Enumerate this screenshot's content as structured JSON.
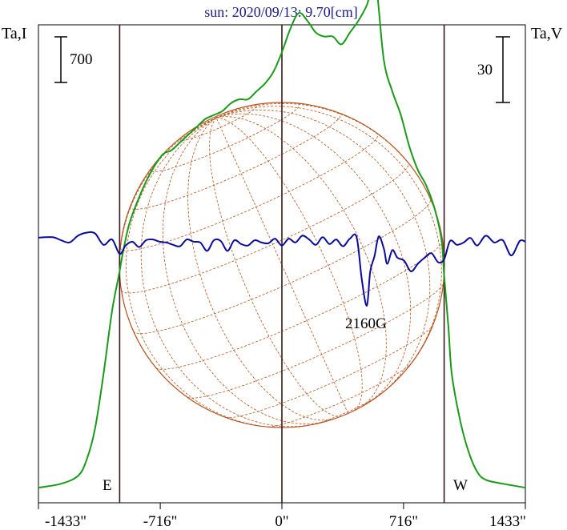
{
  "chart_data": {
    "type": "line",
    "title": "sun: 2020/09/13: 9.70[cm]",
    "left_axis_label": "Ta,I",
    "right_axis_label": "Ta,V",
    "left_scale_label": "700",
    "right_scale_label": "30",
    "x_ticks": [
      {
        "value": -1433,
        "label": "-1433\""
      },
      {
        "value": -716,
        "label": "-716\""
      },
      {
        "value": 0,
        "label": "0\""
      },
      {
        "value": 716,
        "label": "716\""
      },
      {
        "value": 1433,
        "label": "1433\""
      }
    ],
    "xlim": [
      -1433,
      1433
    ],
    "limb_markers": [
      {
        "value": -955,
        "label": "E"
      },
      {
        "value": 0,
        "label": ""
      },
      {
        "value": 955,
        "label": "W"
      }
    ],
    "annotations": [
      {
        "x": 520,
        "text": "2160G"
      }
    ],
    "colors": {
      "intensity": "#1a9a1a",
      "polarization": "#0a0a9a",
      "disk": "#b5531c",
      "limb_lines": "#3a1a1a",
      "title": "#1a1a8c"
    },
    "series": [
      {
        "key": "I",
        "x": [
          -1433,
          -1300,
          -1200,
          -1150,
          -1100,
          -1050,
          -1000,
          -960,
          -940,
          -900,
          -850,
          -800,
          -750,
          -700,
          -650,
          -600,
          -550,
          -500,
          -450,
          -400,
          -350,
          -300,
          -250,
          -200,
          -150,
          -100,
          -50,
          0,
          50,
          100,
          150,
          200,
          250,
          300,
          350,
          400,
          450,
          500,
          550,
          600,
          650,
          700,
          750,
          800,
          850,
          900,
          940,
          955,
          980,
          1000,
          1050,
          1100,
          1150,
          1200,
          1300,
          1433
        ],
        "y": [
          0.01,
          0.02,
          0.04,
          0.08,
          0.16,
          0.3,
          0.46,
          0.55,
          0.6,
          0.68,
          0.74,
          0.79,
          0.83,
          0.86,
          0.87,
          0.89,
          0.91,
          0.93,
          0.95,
          0.96,
          0.97,
          0.99,
          1.0,
          1.0,
          1.02,
          1.04,
          1.07,
          1.12,
          1.18,
          1.22,
          1.2,
          1.17,
          1.16,
          1.16,
          1.14,
          1.17,
          1.2,
          1.24,
          1.3,
          1.1,
          1.02,
          0.96,
          0.88,
          0.82,
          0.78,
          0.72,
          0.64,
          0.55,
          0.42,
          0.3,
          0.18,
          0.1,
          0.05,
          0.03,
          0.02,
          0.01
        ]
      },
      {
        "key": "V",
        "x": [
          -1433,
          -1350,
          -1300,
          -1250,
          -1200,
          -1150,
          -1100,
          -1050,
          -1000,
          -955,
          -920,
          -880,
          -840,
          -800,
          -760,
          -720,
          -680,
          -640,
          -600,
          -560,
          -520,
          -480,
          -440,
          -400,
          -360,
          -320,
          -280,
          -240,
          -200,
          -160,
          -120,
          -80,
          -40,
          0,
          40,
          80,
          120,
          160,
          200,
          240,
          280,
          320,
          360,
          400,
          440,
          470,
          500,
          520,
          545,
          570,
          600,
          620,
          650,
          680,
          720,
          760,
          800,
          840,
          880,
          920,
          955,
          990,
          1030,
          1070,
          1110,
          1150,
          1200,
          1250,
          1300,
          1350,
          1400,
          1433
        ],
        "y": [
          0.22,
          0.25,
          0.05,
          -0.1,
          0.35,
          0.55,
          0.5,
          -0.25,
          0.1,
          -0.85,
          -0.3,
          -0.05,
          -0.4,
          0.05,
          0.1,
          -0.05,
          -0.1,
          -0.25,
          -0.35,
          0.1,
          -0.05,
          -0.1,
          -0.65,
          0.05,
          0.0,
          -0.65,
          0.05,
          -0.2,
          -0.3,
          0.05,
          -0.1,
          -0.15,
          0.15,
          -0.3,
          0.15,
          -0.1,
          0.35,
          0.1,
          -0.25,
          0.25,
          -0.2,
          0.1,
          -0.35,
          0.15,
          0.25,
          -2.5,
          -4.25,
          -2.0,
          -1.0,
          0.3,
          -0.5,
          -1.5,
          -0.6,
          -1.1,
          -1.3,
          -2.0,
          -1.5,
          -1.1,
          -0.8,
          -1.4,
          -1.2,
          0.0,
          -0.25,
          -0.1,
          0.2,
          -0.3,
          0.35,
          -0.1,
          0.05,
          -0.95,
          0.0,
          -0.05
        ]
      }
    ]
  }
}
